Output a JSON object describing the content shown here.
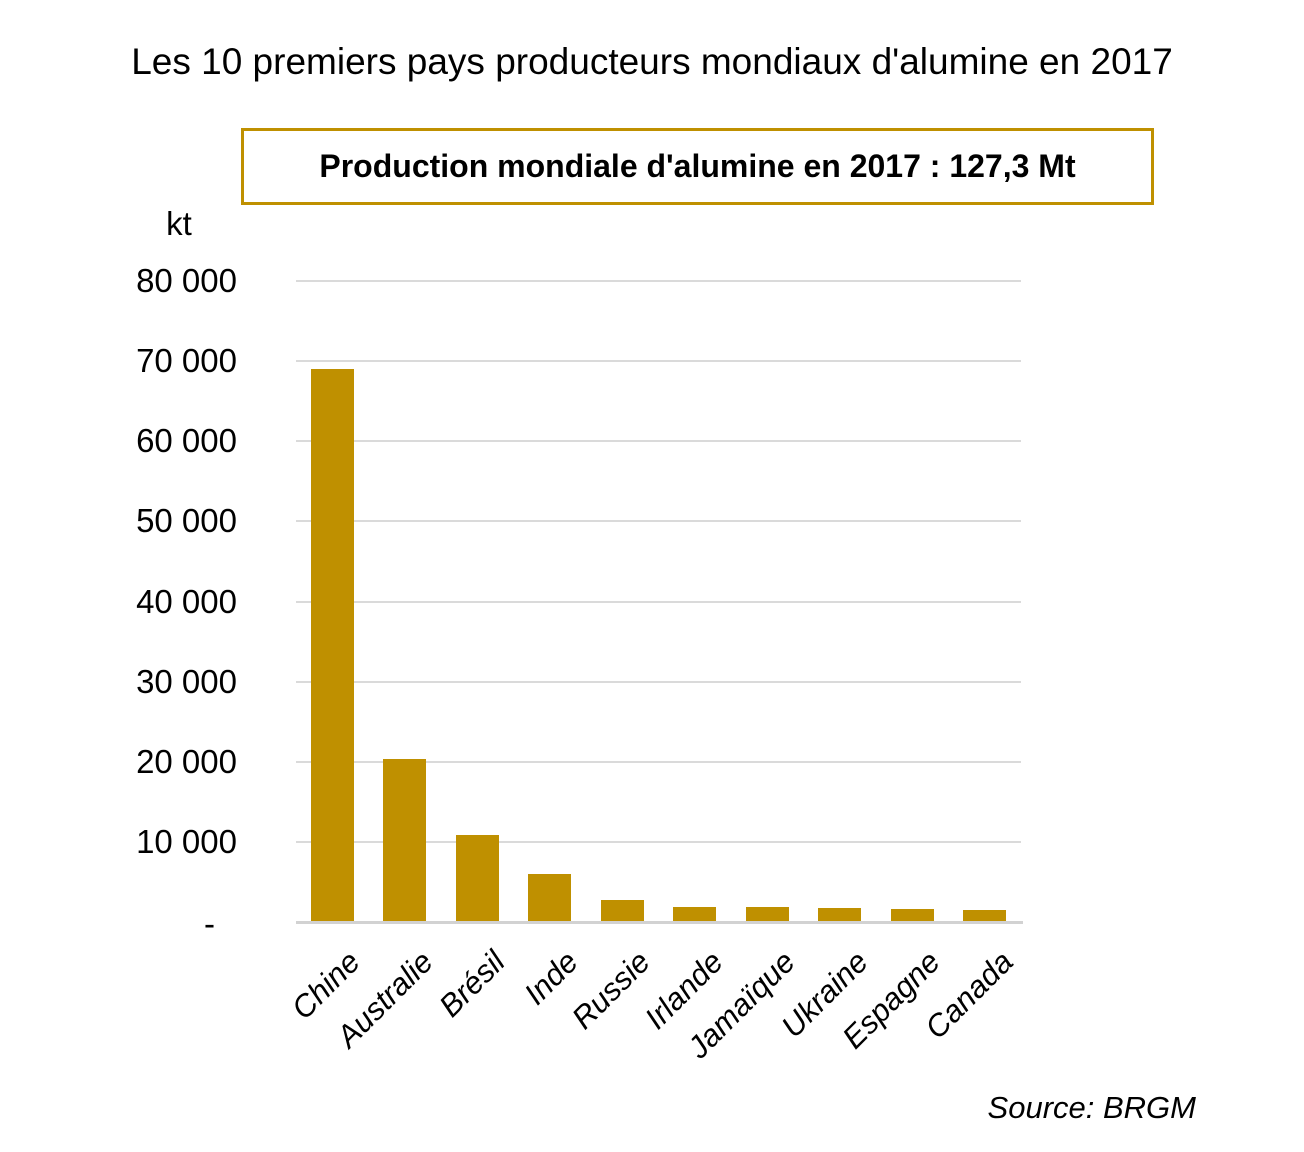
{
  "page": {
    "title": "Les 10 premiers pays producteurs mondiaux d'alumine en 2017",
    "banner_text": "Production mondiale d'alumine en 2017 : 127,3 Mt",
    "source": "Source: BRGM"
  },
  "chart_data": {
    "type": "bar",
    "title": "Les 10 premiers pays producteurs mondiaux d'alumine en 2017",
    "subtitle": "Production mondiale d'alumine en 2017 : 127,3 Mt",
    "unit_label": "kt",
    "categories": [
      "Chine",
      "Australie",
      "Brésil",
      "Inde",
      "Russie",
      "Irlande",
      "Jamaïque",
      "Ukraine",
      "Espagne",
      "Canada"
    ],
    "values": [
      69000,
      20400,
      10800,
      6000,
      2750,
      1900,
      1820,
      1700,
      1600,
      1520
    ],
    "xlabel": "",
    "ylabel": "kt",
    "ylim": [
      0,
      80000
    ],
    "ytick_interval": 10000,
    "ytick_labels_top_down": [
      "80 000",
      "70 000",
      "60 000",
      "50 000",
      "40 000",
      "30 000",
      "20 000",
      "10 000",
      "-"
    ],
    "zero_tick_label": "-",
    "grid": true,
    "legend": "none",
    "bar_color": "#BF9000",
    "source": "Source: BRGM"
  },
  "colors": {
    "bar": "#BF9000",
    "banner_border": "#BF9000",
    "gridline": "#DADADA",
    "axis_line": "#D2D2D2",
    "text": "#000000",
    "background": "#FFFFFF"
  }
}
